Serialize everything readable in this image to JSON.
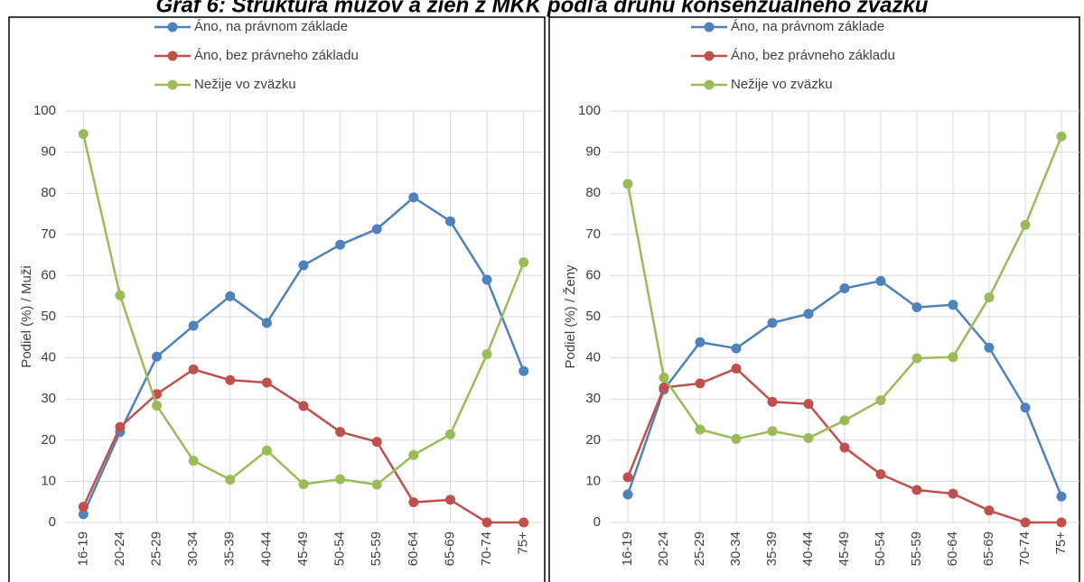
{
  "title": "Graf 6: Štruktúra mužov a žien z MKK podľa druhu konsenzuálneho zväzku",
  "chart_data": [
    {
      "type": "line",
      "y_label": "Podiel (%) / Muži",
      "legend": "top",
      "grid": true,
      "categories": [
        "16-19",
        "20-24",
        "25-29",
        "30-34",
        "35-39",
        "40-44",
        "45-49",
        "50-54",
        "55-59",
        "60-64",
        "65-69",
        "70-74",
        "75+"
      ],
      "ylim": [
        0,
        100
      ],
      "yticks": [
        0,
        10,
        20,
        30,
        40,
        50,
        60,
        70,
        80,
        90,
        100
      ],
      "series": [
        {
          "name": "Áno, na právnom základe",
          "color": "#4f81bd",
          "values": [
            2,
            22,
            40.3,
            47.8,
            55,
            48.5,
            62.5,
            67.5,
            71.3,
            79,
            73.2,
            59,
            36.8
          ]
        },
        {
          "name": "Áno, bez právneho základu",
          "color": "#c0504d",
          "values": [
            3.8,
            23.2,
            31.2,
            37.2,
            34.6,
            34,
            28.3,
            22,
            19.6,
            4.9,
            5.5,
            0,
            0
          ]
        },
        {
          "name": "Nežije vo zväzku",
          "color": "#9bbb59",
          "values": [
            94.4,
            55.2,
            28.4,
            15,
            10.4,
            17.5,
            9.3,
            10.5,
            9.2,
            16.4,
            21.4,
            40.9,
            63.2
          ]
        }
      ]
    },
    {
      "type": "line",
      "y_label": "Podiel (%) / Ženy",
      "legend": "top",
      "grid": true,
      "categories": [
        "16-19",
        "20-24",
        "25-29",
        "30-34",
        "35-39",
        "40-44",
        "45-49",
        "50-54",
        "55-59",
        "60-64",
        "65-69",
        "70-74",
        "75+"
      ],
      "ylim": [
        0,
        100
      ],
      "yticks": [
        0,
        10,
        20,
        30,
        40,
        50,
        60,
        70,
        80,
        90,
        100
      ],
      "series": [
        {
          "name": "Áno, na právnom základe",
          "color": "#4f81bd",
          "values": [
            6.8,
            32.3,
            43.8,
            42.3,
            48.5,
            50.7,
            56.9,
            58.7,
            52.3,
            52.9,
            42.5,
            27.9,
            6.3
          ]
        },
        {
          "name": "Áno, bez právneho základu",
          "color": "#c0504d",
          "values": [
            11,
            32.8,
            33.8,
            37.4,
            29.3,
            28.8,
            18.2,
            11.7,
            7.9,
            7,
            2.9,
            0,
            0
          ]
        },
        {
          "name": "Nežije vo zväzku",
          "color": "#9bbb59",
          "values": [
            82.3,
            35.2,
            22.6,
            20.3,
            22.2,
            20.5,
            24.8,
            29.7,
            39.9,
            40.2,
            54.7,
            72.3,
            93.8
          ]
        }
      ]
    }
  ]
}
